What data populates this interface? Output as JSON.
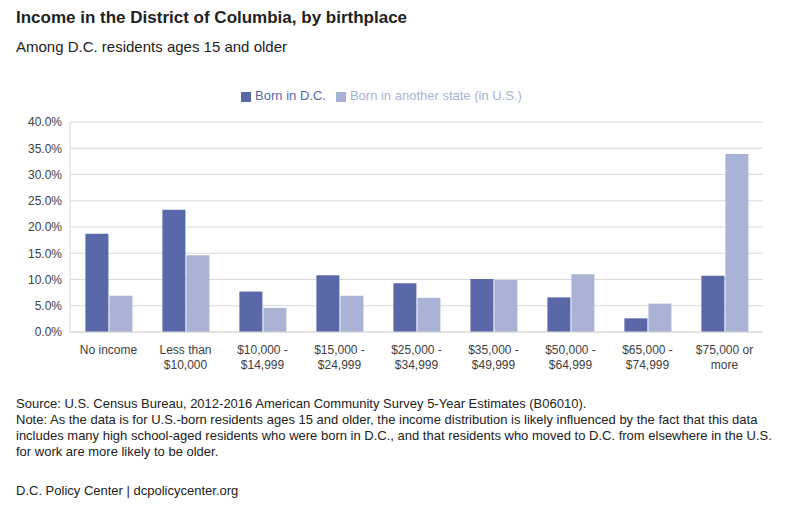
{
  "chart_data": {
    "type": "bar",
    "title": "Income in the District of Columbia, by birthplace",
    "subtitle": "Among D.C. residents ages 15 and older",
    "categories": [
      "No income",
      "Less than $10,000",
      "$10,000 - $14,999",
      "$15,000 - $24,999",
      "$25,000 - $34,999",
      "$35,000 - $49,999",
      "$50,000 - $64,999",
      "$65,000 - $74,999",
      "$75,000 or more"
    ],
    "series": [
      {
        "name": "Born in D.C.",
        "color": "#5a67a8",
        "values": [
          18.7,
          23.3,
          7.7,
          10.8,
          9.3,
          10.1,
          6.6,
          2.6,
          10.7
        ]
      },
      {
        "name": "Born in another state (in U.S.)",
        "color": "#aab3d5",
        "values": [
          6.9,
          14.6,
          4.6,
          6.9,
          6.5,
          9.9,
          11.0,
          5.4,
          33.9
        ]
      }
    ],
    "ylim": [
      0,
      40
    ],
    "yticks": [
      {
        "value": 0,
        "label": "0.0%"
      },
      {
        "value": 5,
        "label": "5.0%"
      },
      {
        "value": 10,
        "label": "10.0%"
      },
      {
        "value": 15,
        "label": "15.0%"
      },
      {
        "value": 20,
        "label": "20.0%"
      },
      {
        "value": 25,
        "label": "25.0%"
      },
      {
        "value": 30,
        "label": "30.0%"
      },
      {
        "value": 35,
        "label": "35.0%"
      },
      {
        "value": 40,
        "label": "40.0%"
      }
    ],
    "grid": true,
    "legend": "top",
    "source": "Source: U.S. Census Bureau, 2012-2016 American Community Survey 5-Year Estimates (B06010).",
    "note": "Note: As the data is for U.S.-born residents ages 15 and older, the income distribution is likely influenced by the fact that this data includes many high school-aged residents who were born in D.C., and that residents who moved to D.C. from elsewhere in the U.S. for work are more likely to be older.",
    "credit": "D.C. Policy Center  |  dcpolicycenter.org"
  }
}
